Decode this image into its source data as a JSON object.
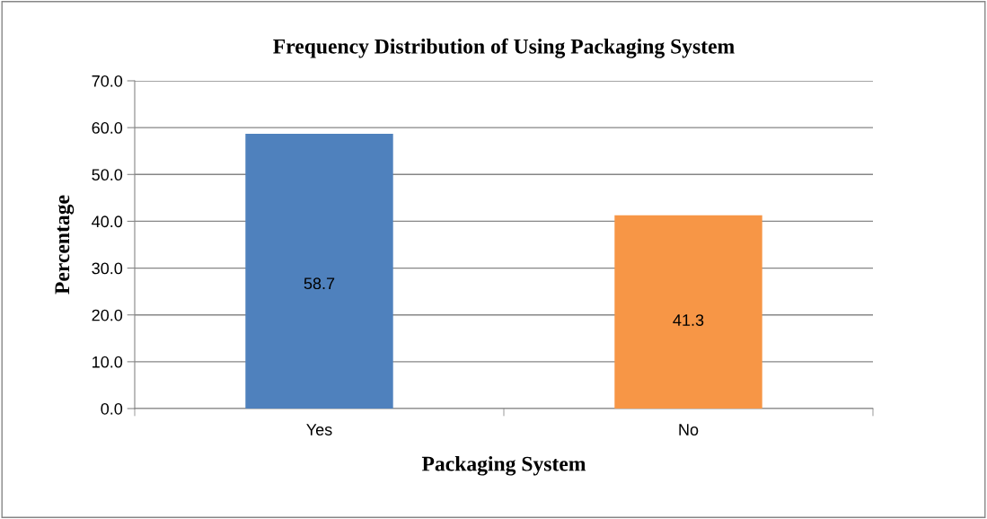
{
  "chart_data": {
    "type": "bar",
    "title": "Frequency Distribution of Using Packaging System",
    "xlabel": "Packaging System",
    "ylabel": "Percentage",
    "categories": [
      "Yes",
      "No"
    ],
    "values": [
      58.7,
      41.3
    ],
    "colors": [
      "#4f81bd",
      "#f79646"
    ],
    "ylim": [
      0,
      70
    ],
    "yticks": [
      {
        "value": 0,
        "label": "0.0"
      },
      {
        "value": 10,
        "label": "10.0"
      },
      {
        "value": 20,
        "label": "20.0"
      },
      {
        "value": 30,
        "label": "30.0"
      },
      {
        "value": 40,
        "label": "40.0"
      },
      {
        "value": 50,
        "label": "50.0"
      },
      {
        "value": 60,
        "label": "60.0"
      },
      {
        "value": 70,
        "label": "70.0"
      }
    ],
    "grid": "y",
    "data_labels": true,
    "legend": false
  }
}
